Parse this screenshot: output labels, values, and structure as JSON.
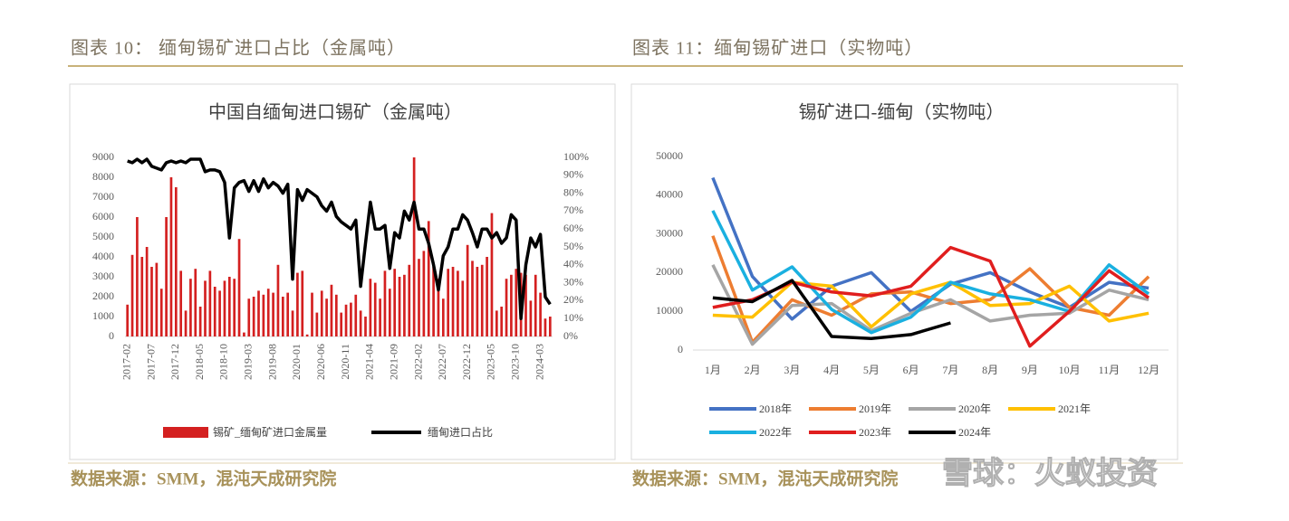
{
  "figures": [
    {
      "caption": "图表 10： 缅甸锡矿进口占比（金属吨）",
      "source": "数据来源：SMM，混沌天成研究院"
    },
    {
      "caption": "图表 11：缅甸锡矿进口（实物吨）",
      "source": "数据来源：SMM，混沌天成研究院"
    }
  ],
  "watermark": "雪球：火蚁投资",
  "chart_data": [
    {
      "type": "combo",
      "title": "中国自缅甸进口锡矿（金属吨）",
      "categories": [
        "2017-02",
        null,
        null,
        null,
        null,
        "2017-07",
        null,
        null,
        null,
        null,
        "2017-12",
        null,
        null,
        null,
        null,
        "2018-05",
        null,
        null,
        null,
        null,
        "2018-10",
        null,
        null,
        null,
        null,
        "2019-03",
        null,
        null,
        null,
        null,
        "2019-08",
        null,
        null,
        null,
        null,
        "2020-01",
        null,
        null,
        null,
        null,
        "2020-06",
        null,
        null,
        null,
        null,
        "2020-11",
        null,
        null,
        null,
        null,
        "2021-04",
        null,
        null,
        null,
        null,
        "2021-09",
        null,
        null,
        null,
        null,
        "2022-02",
        null,
        null,
        null,
        null,
        "2022-07",
        null,
        null,
        null,
        null,
        "2022-12",
        null,
        null,
        null,
        null,
        "2023-05",
        null,
        null,
        null,
        null,
        "2023-10",
        null,
        null,
        null,
        null,
        "2024-03",
        null,
        null
      ],
      "series": [
        {
          "name": "锡矿_缅甸矿进口金属量",
          "color": "#d42020",
          "kind": "bar",
          "values": [
            1600,
            4100,
            6000,
            4000,
            4500,
            3500,
            3700,
            2400,
            6000,
            8000,
            7500,
            3300,
            1300,
            2900,
            3400,
            1500,
            2800,
            3300,
            2500,
            2300,
            2800,
            3000,
            2900,
            4900,
            200,
            1900,
            2000,
            2300,
            2100,
            2400,
            2200,
            3600,
            2000,
            2200,
            1300,
            3200,
            3300,
            100,
            2200,
            1200,
            2300,
            1900,
            2600,
            2100,
            1200,
            1600,
            1700,
            2100,
            1300,
            1000,
            2900,
            2700,
            1900,
            3300,
            2400,
            3400,
            3000,
            3100,
            3600,
            9000,
            3900,
            4300,
            5800,
            3500,
            2900,
            1900,
            3400,
            3500,
            3300,
            2800,
            4600,
            3800,
            3500,
            3600,
            4000,
            6200,
            1300,
            1500,
            2900,
            3100,
            3400,
            3200,
            3100,
            1800,
            3100,
            2200,
            900,
            1000
          ]
        },
        {
          "name": "缅甸进口占比",
          "color": "#000000",
          "kind": "line",
          "axis": "y2",
          "values": [
            98,
            97,
            99,
            97,
            99,
            95,
            94,
            93,
            97,
            98,
            97,
            98,
            97,
            99,
            99,
            99,
            92,
            93,
            93,
            92,
            86,
            55,
            83,
            86,
            87,
            81,
            87,
            81,
            88,
            83,
            86,
            84,
            80,
            85,
            32,
            82,
            76,
            82,
            80,
            78,
            73,
            70,
            75,
            67,
            64,
            62,
            60,
            65,
            28,
            52,
            75,
            60,
            60,
            62,
            38,
            58,
            55,
            70,
            65,
            75,
            60,
            60,
            52,
            40,
            26,
            45,
            50,
            60,
            60,
            68,
            65,
            58,
            50,
            60,
            60,
            55,
            58,
            52,
            55,
            68,
            65,
            10,
            40,
            55,
            50,
            57,
            22,
            18
          ]
        }
      ],
      "ylim": [
        0,
        9000
      ],
      "yticks": [
        0,
        1000,
        2000,
        3000,
        4000,
        5000,
        6000,
        7000,
        8000,
        9000
      ],
      "y2lim": [
        0,
        100
      ],
      "y2ticks": [
        {
          "value": 0,
          "label": "0%"
        },
        {
          "value": 10,
          "label": "10%"
        },
        {
          "value": 20,
          "label": "20%"
        },
        {
          "value": 30,
          "label": "30%"
        },
        {
          "value": 40,
          "label": "40%"
        },
        {
          "value": 50,
          "label": "50%"
        },
        {
          "value": 60,
          "label": "60%"
        },
        {
          "value": 70,
          "label": "70%"
        },
        {
          "value": 80,
          "label": "80%"
        },
        {
          "value": 90,
          "label": "90%"
        },
        {
          "value": 100,
          "label": "100%"
        }
      ]
    },
    {
      "type": "line",
      "title": "锡矿进口-缅甸（实物吨）",
      "categories": [
        "1月",
        "2月",
        "3月",
        "4月",
        "5月",
        "6月",
        "7月",
        "8月",
        "9月",
        "10月",
        "11月",
        "12月"
      ],
      "series": [
        {
          "name": "2018年",
          "color": "#4472c4",
          "values": [
            44500,
            19000,
            8000,
            16500,
            20000,
            10000,
            17000,
            20000,
            15000,
            11000,
            17500,
            16000
          ]
        },
        {
          "name": "2019年",
          "color": "#ed7d31",
          "values": [
            29500,
            2000,
            13000,
            9000,
            14500,
            15000,
            12000,
            13000,
            21000,
            11000,
            9000,
            19000
          ]
        },
        {
          "name": "2020年",
          "color": "#a5a5a5",
          "values": [
            22000,
            1500,
            11500,
            12000,
            5000,
            9500,
            13000,
            7500,
            9000,
            9500,
            15500,
            13000
          ]
        },
        {
          "name": "2021年",
          "color": "#ffc000",
          "values": [
            9000,
            8500,
            17500,
            16500,
            6000,
            14500,
            17500,
            11500,
            12000,
            16500,
            7500,
            9500
          ]
        },
        {
          "name": "2022年",
          "color": "#1ab0e0",
          "values": [
            36000,
            15500,
            21500,
            10500,
            4500,
            8500,
            17500,
            14500,
            13000,
            10000,
            22000,
            14500
          ]
        },
        {
          "name": "2023年",
          "color": "#e01e1e",
          "values": [
            11000,
            13000,
            17500,
            15000,
            14000,
            16500,
            26500,
            23000,
            1000,
            10000,
            20500,
            13500
          ]
        },
        {
          "name": "2024年",
          "color": "#000000",
          "values": [
            13500,
            12500,
            18000,
            3500,
            3000,
            4000,
            7000,
            null,
            null,
            null,
            null,
            null
          ]
        }
      ],
      "ylim": [
        0,
        50000
      ],
      "yticks": [
        0,
        10000,
        20000,
        30000,
        40000,
        50000
      ]
    }
  ]
}
